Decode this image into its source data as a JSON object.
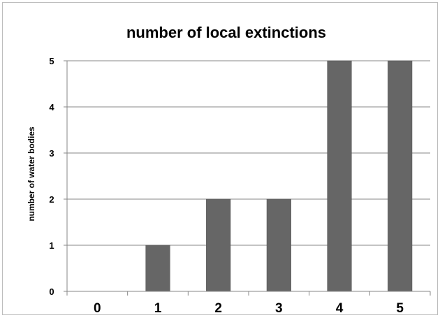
{
  "chart_data": {
    "type": "bar",
    "title": "number of local extinctions",
    "xlabel": "",
    "ylabel": "number of water bodies",
    "categories": [
      "0",
      "1",
      "2",
      "3",
      "4",
      "5"
    ],
    "values": [
      0,
      1,
      2,
      2,
      5,
      5
    ],
    "ylim": [
      0,
      5
    ],
    "yticks": [
      0,
      1,
      2,
      3,
      4,
      5
    ],
    "grid": true,
    "legend": "none",
    "bar_color": "#666666",
    "grid_color": "#878787"
  }
}
